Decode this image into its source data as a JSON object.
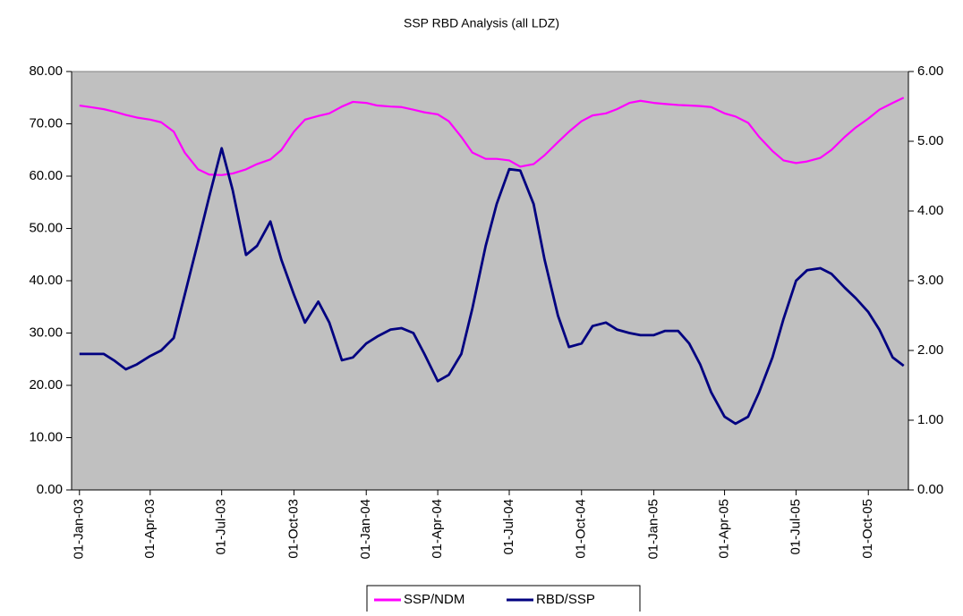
{
  "chart_data": {
    "type": "line",
    "title": "SSP RBD Analysis (all LDZ)",
    "x": [
      "2003-01-01",
      "2003-01-15",
      "2003-02-01",
      "2003-02-15",
      "2003-03-01",
      "2003-03-15",
      "2003-04-01",
      "2003-04-15",
      "2003-05-01",
      "2003-05-15",
      "2003-06-01",
      "2003-06-15",
      "2003-07-01",
      "2003-07-15",
      "2003-08-01",
      "2003-08-15",
      "2003-09-01",
      "2003-09-15",
      "2003-10-01",
      "2003-10-15",
      "2003-11-01",
      "2003-11-15",
      "2003-12-01",
      "2003-12-15",
      "2004-01-01",
      "2004-01-15",
      "2004-02-01",
      "2004-02-15",
      "2004-03-01",
      "2004-03-15",
      "2004-04-01",
      "2004-04-15",
      "2004-05-01",
      "2004-05-15",
      "2004-06-01",
      "2004-06-15",
      "2004-07-01",
      "2004-07-15",
      "2004-08-01",
      "2004-08-15",
      "2004-09-01",
      "2004-09-15",
      "2004-10-01",
      "2004-10-15",
      "2004-11-01",
      "2004-11-15",
      "2004-12-01",
      "2004-12-15",
      "2005-01-01",
      "2005-01-15",
      "2005-02-01",
      "2005-02-15",
      "2005-03-01",
      "2005-03-15",
      "2005-04-01",
      "2005-04-15",
      "2005-05-01",
      "2005-05-15",
      "2005-06-01",
      "2005-06-15",
      "2005-07-01",
      "2005-07-15",
      "2005-08-01",
      "2005-08-15",
      "2005-09-01",
      "2005-09-15",
      "2005-10-01",
      "2005-10-15",
      "2005-11-01",
      "2005-11-15"
    ],
    "series": [
      {
        "name": "SSP/NDM",
        "color": "#ff00ff",
        "axis": "y",
        "values": [
          73.5,
          73.2,
          72.8,
          72.3,
          71.7,
          71.2,
          70.8,
          70.3,
          68.5,
          64.5,
          61.3,
          60.3,
          60.2,
          60.5,
          61.3,
          62.3,
          63.2,
          65,
          68.5,
          70.8,
          71.5,
          72,
          73.3,
          74.2,
          74,
          73.5,
          73.3,
          73.2,
          72.7,
          72.2,
          71.8,
          70.5,
          67.5,
          64.5,
          63.3,
          63.3,
          63,
          61.8,
          62.3,
          64,
          66.5,
          68.5,
          70.5,
          71.6,
          72,
          72.8,
          74,
          74.4,
          74,
          73.8,
          73.6,
          73.5,
          73.4,
          73.2,
          72,
          71.4,
          70.2,
          67.5,
          64.8,
          63,
          62.5,
          62.8,
          63.5,
          65,
          67.5,
          69.3,
          71,
          72.7,
          74,
          75
        ]
      },
      {
        "name": "RBD/SSP",
        "color": "#000080",
        "axis": "y2",
        "values": [
          1.95,
          1.95,
          1.95,
          1.85,
          1.73,
          1.8,
          1.92,
          2.0,
          2.18,
          2.8,
          3.56,
          4.2,
          4.9,
          4.3,
          3.37,
          3.5,
          3.85,
          3.3,
          2.8,
          2.4,
          2.7,
          2.4,
          1.86,
          1.9,
          2.1,
          2.2,
          2.3,
          2.32,
          2.25,
          1.95,
          1.56,
          1.65,
          1.95,
          2.6,
          3.5,
          4.1,
          4.6,
          4.58,
          4.1,
          3.3,
          2.5,
          2.05,
          2.1,
          2.35,
          2.4,
          2.3,
          2.25,
          2.22,
          2.22,
          2.28,
          2.28,
          2.1,
          1.8,
          1.4,
          1.05,
          0.95,
          1.05,
          1.4,
          1.9,
          2.45,
          3.0,
          3.15,
          3.18,
          3.1,
          2.9,
          2.75,
          2.55,
          2.3,
          1.9,
          1.78
        ]
      }
    ],
    "xlim": [
      "2002-12-22",
      "2005-11-21"
    ],
    "xticks": [
      {
        "value": "2003-01-01",
        "label": "01-Jan-03"
      },
      {
        "value": "2003-04-01",
        "label": "01-Apr-03"
      },
      {
        "value": "2003-07-01",
        "label": "01-Jul-03"
      },
      {
        "value": "2003-10-01",
        "label": "01-Oct-03"
      },
      {
        "value": "2004-01-01",
        "label": "01-Jan-04"
      },
      {
        "value": "2004-04-01",
        "label": "01-Apr-04"
      },
      {
        "value": "2004-07-01",
        "label": "01-Jul-04"
      },
      {
        "value": "2004-10-01",
        "label": "01-Oct-04"
      },
      {
        "value": "2005-01-01",
        "label": "01-Jan-05"
      },
      {
        "value": "2005-04-01",
        "label": "01-Apr-05"
      },
      {
        "value": "2005-07-01",
        "label": "01-Jul-05"
      },
      {
        "value": "2005-10-01",
        "label": "01-Oct-05"
      }
    ],
    "ylim": [
      0,
      80
    ],
    "yticks": [
      {
        "value": 0,
        "label": "0.00"
      },
      {
        "value": 10,
        "label": "10.00"
      },
      {
        "value": 20,
        "label": "20.00"
      },
      {
        "value": 30,
        "label": "30.00"
      },
      {
        "value": 40,
        "label": "40.00"
      },
      {
        "value": 50,
        "label": "50.00"
      },
      {
        "value": 60,
        "label": "60.00"
      },
      {
        "value": 70,
        "label": "70.00"
      },
      {
        "value": 80,
        "label": "80.00"
      }
    ],
    "y2lim": [
      0,
      6
    ],
    "y2ticks": [
      {
        "value": 0,
        "label": "0.00"
      },
      {
        "value": 1,
        "label": "1.00"
      },
      {
        "value": 2,
        "label": "2.00"
      },
      {
        "value": 3,
        "label": "3.00"
      },
      {
        "value": 4,
        "label": "4.00"
      },
      {
        "value": 5,
        "label": "5.00"
      },
      {
        "value": 6,
        "label": "6.00"
      }
    ],
    "legend": "bottom"
  }
}
